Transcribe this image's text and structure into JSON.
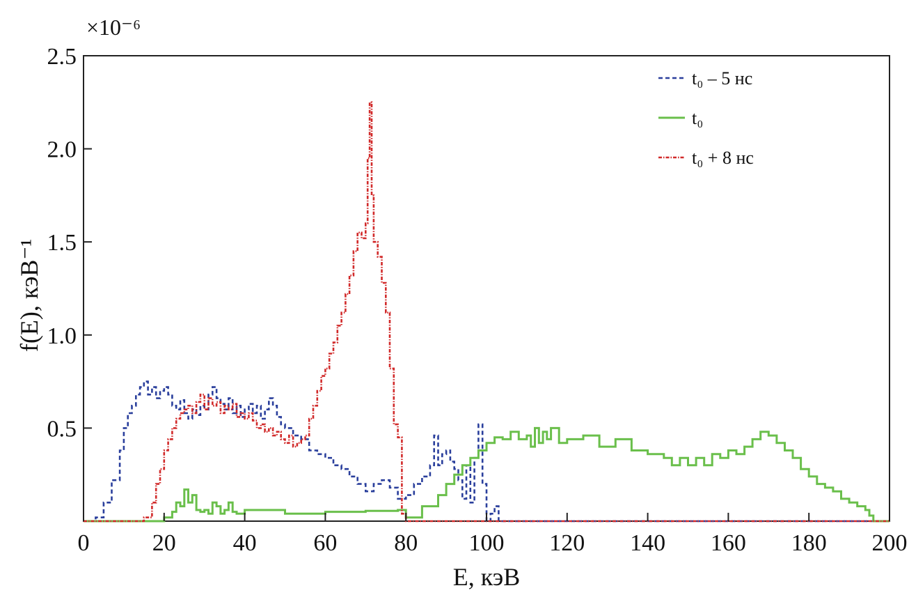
{
  "chart_data": {
    "type": "line",
    "title": "",
    "xlabel": "E, кэВ",
    "ylabel": "f(E), кэВ⁻¹",
    "y_multiplier": "×10⁻⁶",
    "xlim": [
      0,
      200
    ],
    "ylim": [
      0,
      2.5
    ],
    "x_ticks": [
      0,
      20,
      40,
      60,
      80,
      100,
      120,
      140,
      160,
      180,
      200
    ],
    "y_ticks": [
      0.5,
      1.0,
      1.5,
      2.0,
      2.5
    ],
    "y_tick_labels": [
      "0.5",
      "1.0",
      "1.5",
      "2.0",
      "2.5"
    ],
    "grid": false,
    "legend_position": "top-right",
    "series": [
      {
        "name": "t₀ – 5 нс",
        "color": "#2a3f9c",
        "style": "dashed",
        "x": [
          0,
          3,
          5,
          7,
          9,
          10,
          11,
          12,
          13,
          14,
          15,
          16,
          17,
          18,
          19,
          20,
          21,
          22,
          23,
          24,
          25,
          26,
          27,
          28,
          29,
          30,
          31,
          32,
          33,
          34,
          35,
          36,
          37,
          38,
          39,
          40,
          41,
          42,
          43,
          44,
          45,
          46,
          47,
          48,
          49,
          50,
          52,
          54,
          56,
          58,
          60,
          62,
          64,
          66,
          68,
          70,
          72,
          74,
          76,
          78,
          80,
          82,
          84,
          86,
          87,
          88,
          89,
          90,
          91,
          92,
          93,
          94,
          95,
          96,
          97,
          98,
          99,
          100,
          101,
          102,
          103,
          110,
          200
        ],
        "y": [
          0.0,
          0.02,
          0.1,
          0.22,
          0.38,
          0.5,
          0.58,
          0.62,
          0.68,
          0.72,
          0.75,
          0.68,
          0.72,
          0.66,
          0.7,
          0.72,
          0.68,
          0.62,
          0.6,
          0.65,
          0.58,
          0.55,
          0.6,
          0.57,
          0.62,
          0.6,
          0.68,
          0.72,
          0.66,
          0.63,
          0.6,
          0.66,
          0.58,
          0.62,
          0.56,
          0.6,
          0.63,
          0.58,
          0.62,
          0.55,
          0.6,
          0.66,
          0.62,
          0.56,
          0.52,
          0.5,
          0.46,
          0.44,
          0.38,
          0.36,
          0.34,
          0.3,
          0.28,
          0.24,
          0.2,
          0.16,
          0.2,
          0.22,
          0.18,
          0.12,
          0.14,
          0.2,
          0.24,
          0.3,
          0.46,
          0.3,
          0.36,
          0.38,
          0.32,
          0.28,
          0.22,
          0.12,
          0.3,
          0.1,
          0.34,
          0.52,
          0.2,
          0.0,
          0.04,
          0.08,
          0.0,
          0.0,
          0.0
        ]
      },
      {
        "name": "t₀",
        "color": "#6abf4b",
        "style": "solid",
        "x": [
          0,
          10,
          20,
          22,
          23,
          24,
          25,
          26,
          27,
          28,
          29,
          30,
          31,
          32,
          33,
          34,
          35,
          36,
          37,
          38,
          40,
          50,
          60,
          70,
          78,
          80,
          84,
          88,
          90,
          92,
          94,
          96,
          98,
          100,
          102,
          104,
          106,
          108,
          110,
          111,
          112,
          113,
          114,
          115,
          116,
          118,
          120,
          124,
          128,
          132,
          136,
          140,
          144,
          146,
          148,
          150,
          152,
          154,
          156,
          158,
          160,
          162,
          164,
          166,
          168,
          170,
          172,
          174,
          176,
          178,
          180,
          182,
          184,
          186,
          188,
          190,
          192,
          194,
          195,
          196,
          200
        ],
        "y": [
          0.0,
          0.0,
          0.02,
          0.05,
          0.1,
          0.08,
          0.17,
          0.1,
          0.14,
          0.06,
          0.05,
          0.06,
          0.04,
          0.1,
          0.08,
          0.04,
          0.06,
          0.1,
          0.05,
          0.04,
          0.06,
          0.04,
          0.05,
          0.055,
          0.06,
          0.02,
          0.08,
          0.14,
          0.2,
          0.25,
          0.3,
          0.34,
          0.38,
          0.42,
          0.45,
          0.44,
          0.48,
          0.44,
          0.46,
          0.4,
          0.5,
          0.42,
          0.48,
          0.44,
          0.5,
          0.42,
          0.44,
          0.46,
          0.4,
          0.44,
          0.38,
          0.36,
          0.34,
          0.3,
          0.34,
          0.3,
          0.34,
          0.3,
          0.36,
          0.34,
          0.38,
          0.36,
          0.4,
          0.44,
          0.48,
          0.46,
          0.42,
          0.38,
          0.34,
          0.28,
          0.24,
          0.2,
          0.18,
          0.16,
          0.12,
          0.1,
          0.08,
          0.06,
          0.03,
          0.0,
          0.0
        ]
      },
      {
        "name": "t₀ + 8 нс",
        "color": "#d12a2a",
        "style": "dashdot",
        "x": [
          0,
          10,
          15,
          17,
          18,
          19,
          20,
          21,
          22,
          23,
          24,
          25,
          26,
          27,
          28,
          29,
          30,
          31,
          32,
          33,
          34,
          35,
          36,
          37,
          38,
          39,
          40,
          41,
          42,
          43,
          44,
          45,
          46,
          47,
          48,
          49,
          50,
          51,
          52,
          53,
          54,
          55,
          56,
          57,
          58,
          59,
          60,
          61,
          62,
          63,
          64,
          65,
          66,
          67,
          68,
          69,
          70,
          70.5,
          71,
          71.5,
          72,
          73,
          74,
          75,
          76,
          77,
          78,
          79,
          80,
          200
        ],
        "y": [
          0.0,
          0.0,
          0.02,
          0.1,
          0.2,
          0.28,
          0.38,
          0.44,
          0.5,
          0.55,
          0.58,
          0.6,
          0.62,
          0.58,
          0.64,
          0.68,
          0.6,
          0.66,
          0.62,
          0.64,
          0.58,
          0.62,
          0.6,
          0.63,
          0.56,
          0.58,
          0.55,
          0.58,
          0.54,
          0.5,
          0.52,
          0.48,
          0.5,
          0.46,
          0.48,
          0.44,
          0.42,
          0.46,
          0.4,
          0.42,
          0.44,
          0.46,
          0.55,
          0.62,
          0.7,
          0.78,
          0.82,
          0.9,
          0.96,
          1.05,
          1.12,
          1.22,
          1.32,
          1.45,
          1.55,
          1.52,
          1.6,
          1.95,
          2.25,
          1.75,
          1.5,
          1.42,
          1.28,
          1.12,
          0.82,
          0.52,
          0.45,
          0.04,
          0.0,
          0.0
        ]
      }
    ]
  }
}
